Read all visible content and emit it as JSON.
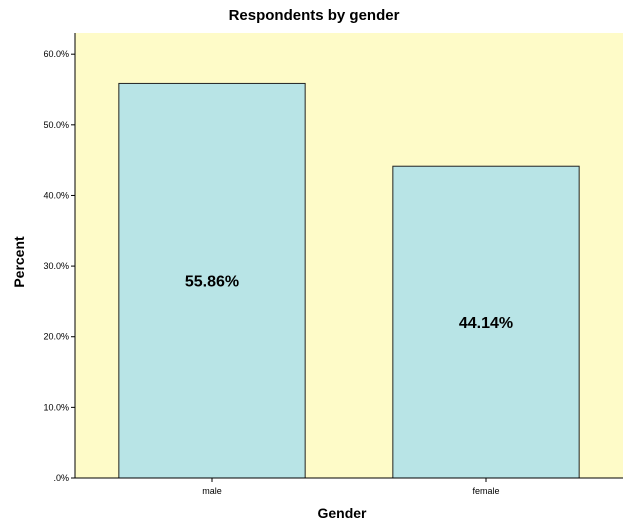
{
  "colors": {
    "plot_background": "#fefbc8",
    "bar_fill": "#b8e4e6",
    "bar_stroke": "#222222",
    "axis": "#000000"
  },
  "chart_data": {
    "type": "bar",
    "title": "Respondents by gender",
    "xlabel": "Gender",
    "ylabel": "Percent",
    "categories": [
      "male",
      "female"
    ],
    "values": [
      55.86,
      44.14
    ],
    "data_labels": [
      "55.86%",
      "44.14%"
    ],
    "ylim": [
      0,
      63
    ],
    "yticks": [
      0,
      10,
      20,
      30,
      40,
      50,
      60
    ],
    "ytick_labels": [
      ".0%",
      "10.0%",
      "20.0%",
      "30.0%",
      "40.0%",
      "50.0%",
      "60.0%"
    ],
    "grid": false,
    "legend": "none"
  }
}
